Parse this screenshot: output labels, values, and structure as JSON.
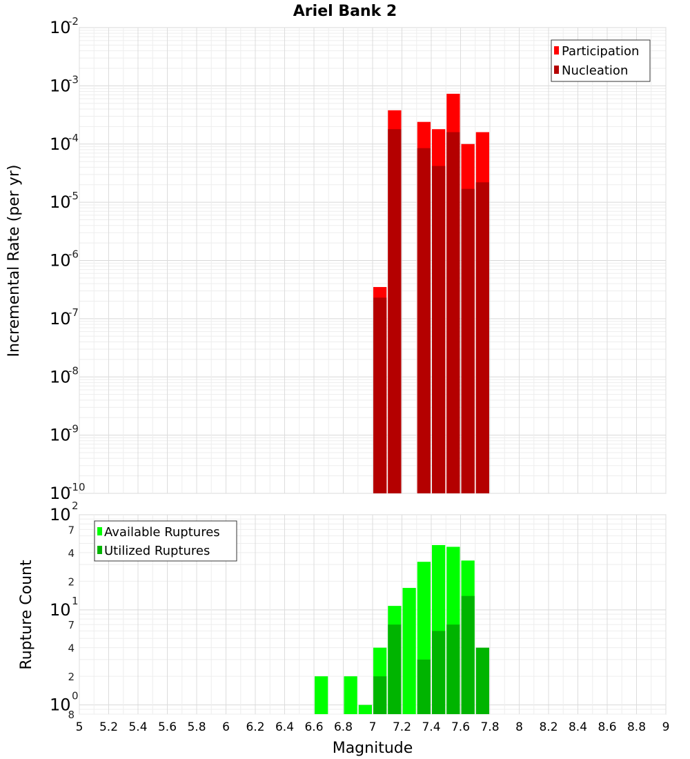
{
  "chart_data": [
    {
      "type": "bar",
      "title": "Ariel Bank 2",
      "xlabel": "Magnitude",
      "ylabel": "Incremental Rate (per yr)",
      "yscale": "log",
      "ylim_exp": [
        -10,
        -2
      ],
      "y_tick_exponents": [
        "-10",
        "-9",
        "-8",
        "-7",
        "-6",
        "-5",
        "-4",
        "-3",
        "-2"
      ],
      "y_tick_base": "10",
      "xlim": [
        5,
        9
      ],
      "grid": true,
      "legend_position": "top-right",
      "series": [
        {
          "name": "Participation",
          "color": "#ff0000",
          "points": [
            [
              7.05,
              3.5e-07
            ],
            [
              7.15,
              0.00038
            ],
            [
              7.35,
              0.00024
            ],
            [
              7.45,
              0.00018
            ],
            [
              7.55,
              0.00073
            ],
            [
              7.65,
              0.0001
            ],
            [
              7.75,
              0.00016
            ]
          ]
        },
        {
          "name": "Nucleation",
          "color": "#b40000",
          "points": [
            [
              7.05,
              2.3e-07
            ],
            [
              7.15,
              0.00018
            ],
            [
              7.35,
              8.5e-05
            ],
            [
              7.45,
              4.2e-05
            ],
            [
              7.55,
              0.00016
            ],
            [
              7.65,
              1.7e-05
            ],
            [
              7.75,
              2.2e-05
            ]
          ]
        }
      ]
    },
    {
      "type": "bar",
      "xlabel": "Magnitude",
      "ylabel": "Rupture Count",
      "yscale": "log",
      "ylim": [
        0.8,
        100
      ],
      "y_major_tick_exponents": [
        "0",
        "1",
        "2"
      ],
      "y_tick_base": "10",
      "y_minor_labels": [
        "8",
        "2",
        "4",
        "7",
        "2",
        "4",
        "7"
      ],
      "xlim": [
        5,
        9
      ],
      "x_ticks": [
        "5",
        "5.2",
        "5.4",
        "5.6",
        "5.8",
        "6",
        "6.2",
        "6.4",
        "6.6",
        "6.8",
        "7",
        "7.2",
        "7.4",
        "7.6",
        "7.8",
        "8",
        "8.2",
        "8.4",
        "8.6",
        "8.8",
        "9"
      ],
      "grid": true,
      "legend_position": "top-left",
      "series": [
        {
          "name": "Available Ruptures",
          "color": "#00ff00",
          "points": [
            [
              6.65,
              2
            ],
            [
              6.85,
              2
            ],
            [
              6.95,
              1
            ],
            [
              7.05,
              4
            ],
            [
              7.15,
              11
            ],
            [
              7.25,
              17
            ],
            [
              7.35,
              32
            ],
            [
              7.45,
              48
            ],
            [
              7.55,
              46
            ],
            [
              7.65,
              33
            ]
          ]
        },
        {
          "name": "Utilized Ruptures",
          "color": "#00b400",
          "points": [
            [
              7.05,
              2
            ],
            [
              7.15,
              7
            ],
            [
              7.35,
              3
            ],
            [
              7.45,
              6
            ],
            [
              7.55,
              7
            ],
            [
              7.65,
              14
            ],
            [
              7.75,
              4
            ]
          ]
        }
      ]
    }
  ]
}
